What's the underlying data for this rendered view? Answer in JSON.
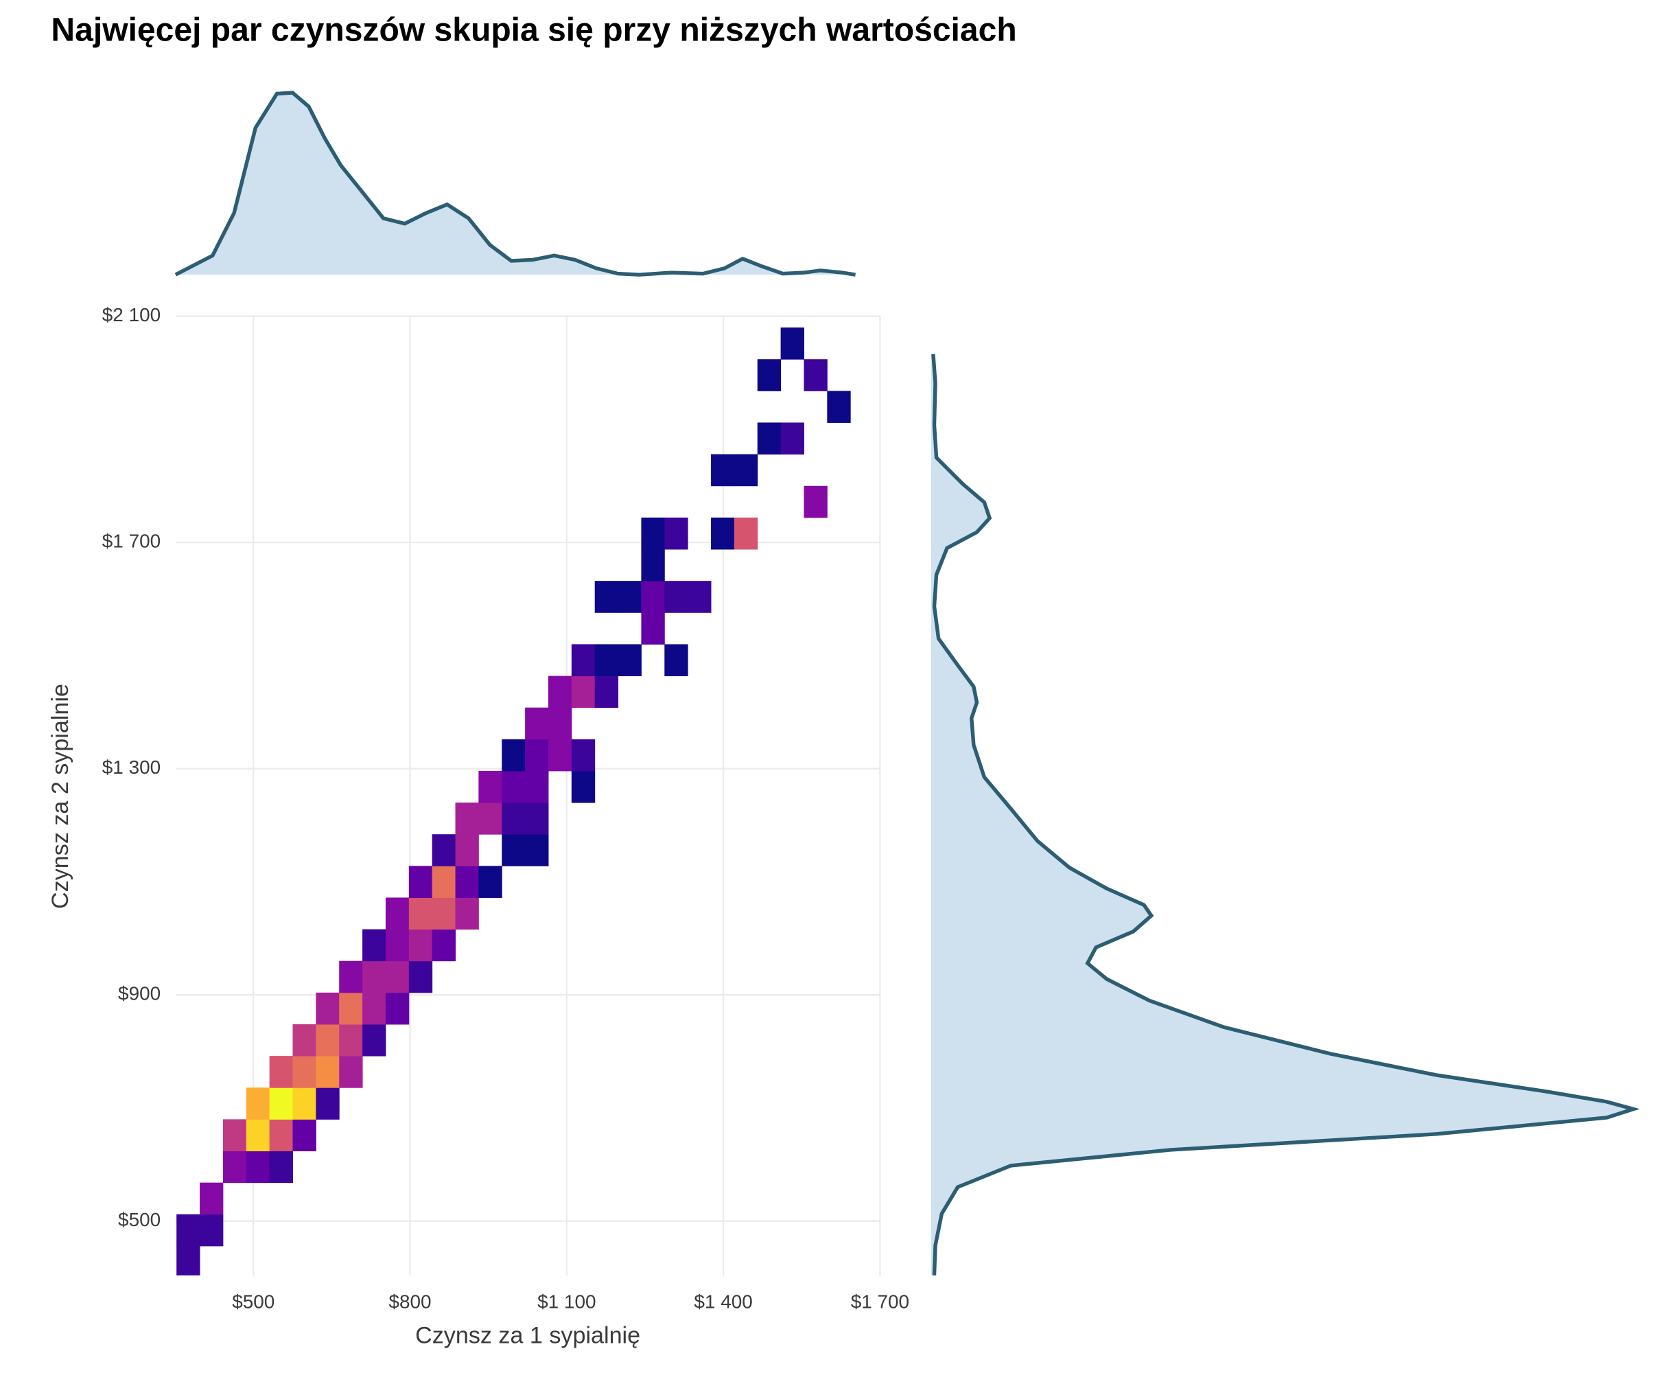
{
  "chart_data": {
    "type": "bin2d",
    "title": "Najwięcej par czynszów skupia się przy niższych wartościach",
    "x_label": "Czynsz za 1 sypialnię",
    "y_label": "Czynsz za 2 sypialnie",
    "xlim": [
      351,
      1700
    ],
    "ylim": [
      404,
      2100
    ],
    "xticks": [
      {
        "value": 500,
        "label": "$500"
      },
      {
        "value": 800,
        "label": "$800"
      },
      {
        "value": 1100,
        "label": "$1 100"
      },
      {
        "value": 1400,
        "label": "$1 400"
      },
      {
        "value": 1700,
        "label": "$1 700"
      }
    ],
    "yticks": [
      {
        "value": 500,
        "label": "$500"
      },
      {
        "value": 900,
        "label": "$900"
      },
      {
        "value": 1300,
        "label": "$1 300"
      },
      {
        "value": 1700,
        "label": "$1 700"
      },
      {
        "value": 2100,
        "label": "$2 100"
      }
    ],
    "grid": true,
    "binwidth": [
      44.5,
      56
    ],
    "colorscale": "plasma",
    "x": [
      375,
      375,
      419.5,
      419.5,
      464,
      508.5,
      553,
      464,
      508.5,
      553,
      597.5,
      508.5,
      553,
      597.5,
      642,
      553,
      597.5,
      642,
      686.5,
      597.5,
      642,
      686.5,
      731,
      642,
      686.5,
      731,
      775.5,
      686.5,
      731,
      775.5,
      820,
      731,
      775.5,
      820,
      864.5,
      775.5,
      820,
      864.5,
      909,
      820,
      864.5,
      909,
      953.5,
      864.5,
      909,
      998,
      1042.5,
      909,
      953.5,
      998,
      1042.5,
      953.5,
      998,
      1042.5,
      1131.5,
      998,
      1042.5,
      1087,
      1131.5,
      1042.5,
      1087,
      1087,
      1131.5,
      1176,
      1131.5,
      1176,
      1220.5,
      1309.5,
      1265,
      1176,
      1220.5,
      1265,
      1309.5,
      1354,
      1265,
      1265,
      1309.5,
      1398.5,
      1443,
      1576.5,
      1398.5,
      1443,
      1487.5,
      1532,
      1621,
      1487.5,
      1576.5,
      1532
    ],
    "y": [
      428,
      484,
      484,
      540,
      596,
      596,
      596,
      652,
      652,
      652,
      652,
      708,
      708,
      708,
      708,
      764,
      764,
      764,
      764,
      820,
      820,
      820,
      820,
      876,
      876,
      876,
      876,
      932,
      932,
      932,
      932,
      988,
      988,
      988,
      988,
      1044,
      1044,
      1044,
      1044,
      1100,
      1100,
      1100,
      1100,
      1156,
      1156,
      1156,
      1156,
      1212,
      1212,
      1212,
      1212,
      1268,
      1268,
      1268,
      1268,
      1324,
      1324,
      1324,
      1324,
      1380,
      1380,
      1436,
      1436,
      1436,
      1492,
      1492,
      1492,
      1492,
      1548,
      1604,
      1604,
      1604,
      1604,
      1604,
      1660,
      1716,
      1716,
      1716,
      1716,
      1772,
      1828,
      1828,
      1884,
      1884,
      1940,
      1996,
      1996,
      2052
    ],
    "values": [
      2,
      2,
      2,
      4,
      4,
      3,
      2,
      6,
      11,
      7,
      3,
      10,
      12,
      11,
      2,
      7,
      8,
      9,
      5,
      6,
      8,
      6,
      2,
      5,
      8,
      5,
      3,
      4,
      5,
      5,
      2,
      2,
      4,
      5,
      3,
      4,
      7,
      7,
      5,
      3,
      8,
      3,
      1,
      2,
      5,
      1,
      1,
      5,
      5,
      2,
      2,
      4,
      3,
      3,
      1,
      1,
      3,
      4,
      2,
      4,
      4,
      4,
      5,
      2,
      2,
      1,
      1,
      1,
      3,
      1,
      1,
      3,
      2,
      2,
      1,
      1,
      2,
      1,
      7,
      4,
      1,
      1,
      1,
      2,
      1,
      1,
      2,
      1
    ],
    "marginal_x": {
      "x": [
        351,
        422,
        463,
        504,
        545,
        575,
        606,
        637,
        667,
        708,
        749,
        790,
        831,
        871,
        912,
        953,
        994,
        1035,
        1076,
        1116,
        1157,
        1198,
        1239,
        1300,
        1361,
        1402,
        1437,
        1473,
        1514,
        1555,
        1586,
        1627,
        1653
      ],
      "density": [
        0,
        18,
        58,
        138,
        170,
        171,
        158,
        128,
        103,
        78,
        53,
        48,
        58,
        66,
        53,
        28,
        13,
        14,
        18,
        14,
        6,
        1,
        0,
        2,
        1,
        6,
        15,
        8,
        1,
        2,
        4,
        2,
        0
      ]
    },
    "marginal_y": {
      "y": [
        2033,
        1982,
        1907,
        1850,
        1803,
        1771,
        1743,
        1718,
        1690,
        1643,
        1587,
        1530,
        1483,
        1445,
        1417,
        1389,
        1342,
        1285,
        1229,
        1172,
        1125,
        1088,
        1059,
        1040,
        1012,
        984,
        956,
        928,
        890,
        843,
        796,
        758,
        730,
        711,
        698,
        683,
        654,
        626,
        598,
        560,
        513,
        457,
        404
      ],
      "density": [
        2,
        4,
        3,
        5,
        30,
        50,
        55,
        43,
        15,
        5,
        3,
        7,
        25,
        40,
        43,
        38,
        40,
        50,
        75,
        100,
        130,
        165,
        200,
        207,
        190,
        155,
        147,
        165,
        205,
        275,
        375,
        475,
        575,
        635,
        660,
        635,
        475,
        225,
        75,
        25,
        10,
        4,
        3
      ]
    },
    "density_line_color": "#2c5d72",
    "density_fill_color": "#cfe1ee"
  }
}
